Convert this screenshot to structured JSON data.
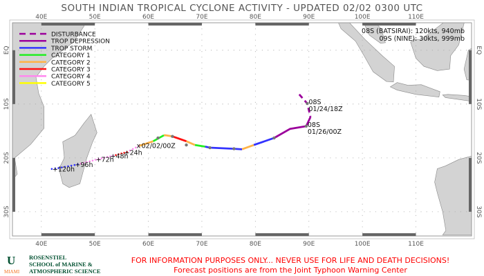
{
  "title": "SOUTH INDIAN TROPICAL CYCLONE ACTIVITY - UPDATED 02/02 0300 UTC",
  "map": {
    "lon_range": [
      34.6,
      120.4
    ],
    "lat_range": [
      -34.5,
      5.1
    ],
    "lon_ticks": [
      {
        "value": 40,
        "label": "40E"
      },
      {
        "value": 50,
        "label": "50E"
      },
      {
        "value": 60,
        "label": "60E"
      },
      {
        "value": 70,
        "label": "70E"
      },
      {
        "value": 80,
        "label": "80E"
      },
      {
        "value": 90,
        "label": "90E"
      },
      {
        "value": 100,
        "label": "100E"
      },
      {
        "value": 110,
        "label": "110E"
      }
    ],
    "lat_ticks": [
      {
        "value": 0,
        "label": "EQ"
      },
      {
        "value": -10,
        "label": "10S"
      },
      {
        "value": -20,
        "label": "20S"
      },
      {
        "value": -30,
        "label": "30S"
      }
    ],
    "land_color": "#d3d3d3",
    "grid": true
  },
  "legend": [
    {
      "label": "DISTURBANCE",
      "color": "#9b009b",
      "dashed": true
    },
    {
      "label": "TROP DEPRESSION",
      "color": "#9b009b"
    },
    {
      "label": "TROP STORM",
      "color": "#3333ff"
    },
    {
      "label": "CATEGORY 1",
      "color": "#22ee22"
    },
    {
      "label": "CATEGORY 2",
      "color": "#ffb347"
    },
    {
      "label": "CATEGORY 3",
      "color": "#ff1111"
    },
    {
      "label": "CATEGORY 4",
      "color": "#ff88ee"
    },
    {
      "label": "CATEGORY 5",
      "color": "#ffff00"
    }
  ],
  "storm_info": [
    "08S (BATSIRAI): 120kts, 940mb",
    "09S (NINE): 30kts, 999mb"
  ],
  "track": {
    "segments": [
      {
        "cat": 0,
        "points": [
          [
            88.2,
            -8.2
          ],
          [
            89.7,
            -9.9
          ],
          [
            90.3,
            -12.4
          ]
        ]
      },
      {
        "cat": 1,
        "points": [
          [
            90.3,
            -12.4
          ],
          [
            89.5,
            -14.1
          ],
          [
            86.5,
            -14.6
          ],
          [
            83.5,
            -16.3
          ]
        ]
      },
      {
        "cat": 2,
        "points": [
          [
            83.5,
            -16.3
          ],
          [
            79.7,
            -17.6
          ]
        ]
      },
      {
        "cat": 4,
        "points": [
          [
            79.7,
            -17.6
          ],
          [
            77.5,
            -18.4
          ]
        ]
      },
      {
        "cat": 2,
        "points": [
          [
            77.5,
            -18.4
          ],
          [
            76.0,
            -18.3
          ],
          [
            71.5,
            -18.1
          ],
          [
            70.6,
            -17.9
          ]
        ]
      },
      {
        "cat": 3,
        "points": [
          [
            70.6,
            -17.9
          ],
          [
            68.7,
            -17.6
          ]
        ]
      },
      {
        "cat": 4,
        "points": [
          [
            68.7,
            -17.6
          ],
          [
            67.1,
            -16.9
          ]
        ]
      },
      {
        "cat": 5,
        "points": [
          [
            67.1,
            -16.9
          ],
          [
            64.5,
            -16.0
          ]
        ]
      },
      {
        "cat": 4,
        "points": [
          [
            64.5,
            -16.0
          ],
          [
            63.3,
            -15.8
          ],
          [
            62.9,
            -15.8
          ]
        ]
      },
      {
        "cat": 3,
        "points": [
          [
            62.9,
            -15.8
          ],
          [
            60.9,
            -16.9
          ]
        ]
      },
      {
        "cat": 4,
        "points": [
          [
            60.9,
            -16.9
          ],
          [
            58.2,
            -17.8
          ]
        ]
      }
    ],
    "position_markers": [
      [
        89.7,
        -9.9
      ],
      [
        89.5,
        -14.1
      ],
      [
        83.5,
        -16.3
      ],
      [
        76.0,
        -18.3
      ],
      [
        71.5,
        -18.1
      ],
      [
        67.1,
        -17.6
      ],
      [
        64.5,
        -16.0
      ],
      [
        61.8,
        -16.3
      ]
    ],
    "labels": [
      {
        "name": "08S",
        "date": "01/24/18Z",
        "lon": 89.7,
        "lat": -9.9
      },
      {
        "name": "08S",
        "date": "01/26/00Z",
        "lon": 89.5,
        "lat": -14.1
      }
    ],
    "current": {
      "label": "02/02/00Z",
      "lon": 58.2,
      "lat": -17.8
    },
    "forecast": {
      "points": [
        [
          58.2,
          -17.8
        ],
        [
          56.0,
          -18.9
        ],
        [
          53.4,
          -19.6
        ],
        [
          50.7,
          -20.2
        ],
        [
          46.8,
          -21.2
        ],
        [
          42.6,
          -22.0
        ],
        [
          41.3,
          -22.1
        ]
      ],
      "cats": [
        6,
        5,
        6,
        6,
        2,
        2
      ],
      "hours": [
        {
          "label": "+24h",
          "lon": 56.0,
          "lat": -18.9
        },
        {
          "label": "+48h",
          "lon": 53.4,
          "lat": -19.6
        },
        {
          "label": "+72h",
          "lon": 50.7,
          "lat": -20.2
        },
        {
          "label": "+96h",
          "lon": 46.8,
          "lat": -21.2
        },
        {
          "label": "+120h",
          "lon": 42.6,
          "lat": -22.0
        }
      ]
    }
  },
  "logo": {
    "u": "U",
    "miami": "MIAMI",
    "lines": [
      "ROSENSTIEL",
      "SCHOOL of MARINE &",
      "ATMOSPHERIC SCIENCE"
    ]
  },
  "disclaimer": [
    "FOR INFORMATION PURPOSES ONLY... NEVER USE FOR LIFE AND DEATH DECISIONS!",
    "Forecast positions are from the Joint Typhoon Warning Center"
  ]
}
